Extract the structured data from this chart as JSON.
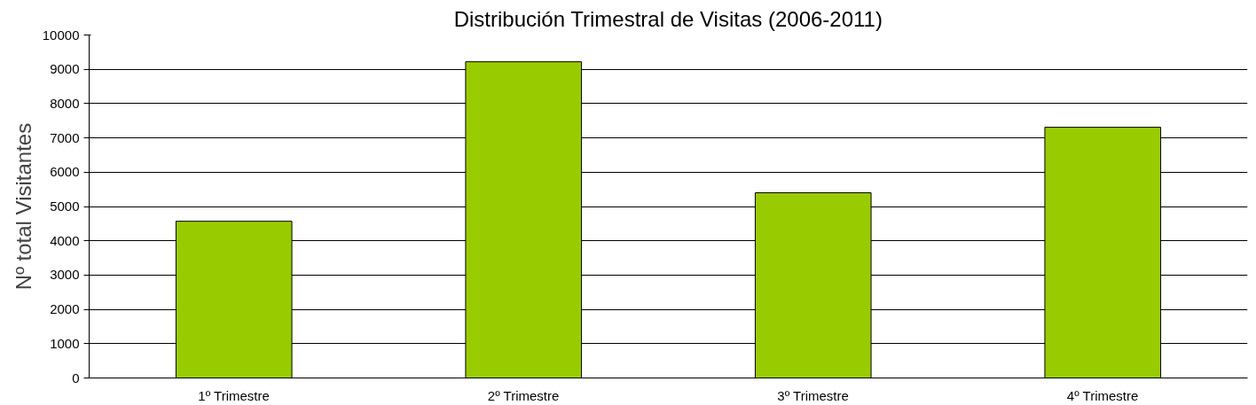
{
  "chart_data": {
    "type": "bar",
    "title": "Distribución Trimestral de Visitas (2006-2011)",
    "ylabel": "Nº total Visitantes",
    "categories": [
      "1º Trimestre",
      "2º Trimestre",
      "3º Trimestre",
      "4º Trimestre"
    ],
    "values": [
      4570,
      9220,
      5400,
      7310
    ],
    "color": "#99cc00",
    "ylim": [
      0,
      10000
    ],
    "yticks": [
      0,
      1000,
      2000,
      3000,
      4000,
      5000,
      6000,
      7000,
      8000,
      9000,
      10000
    ],
    "grid": "y"
  }
}
